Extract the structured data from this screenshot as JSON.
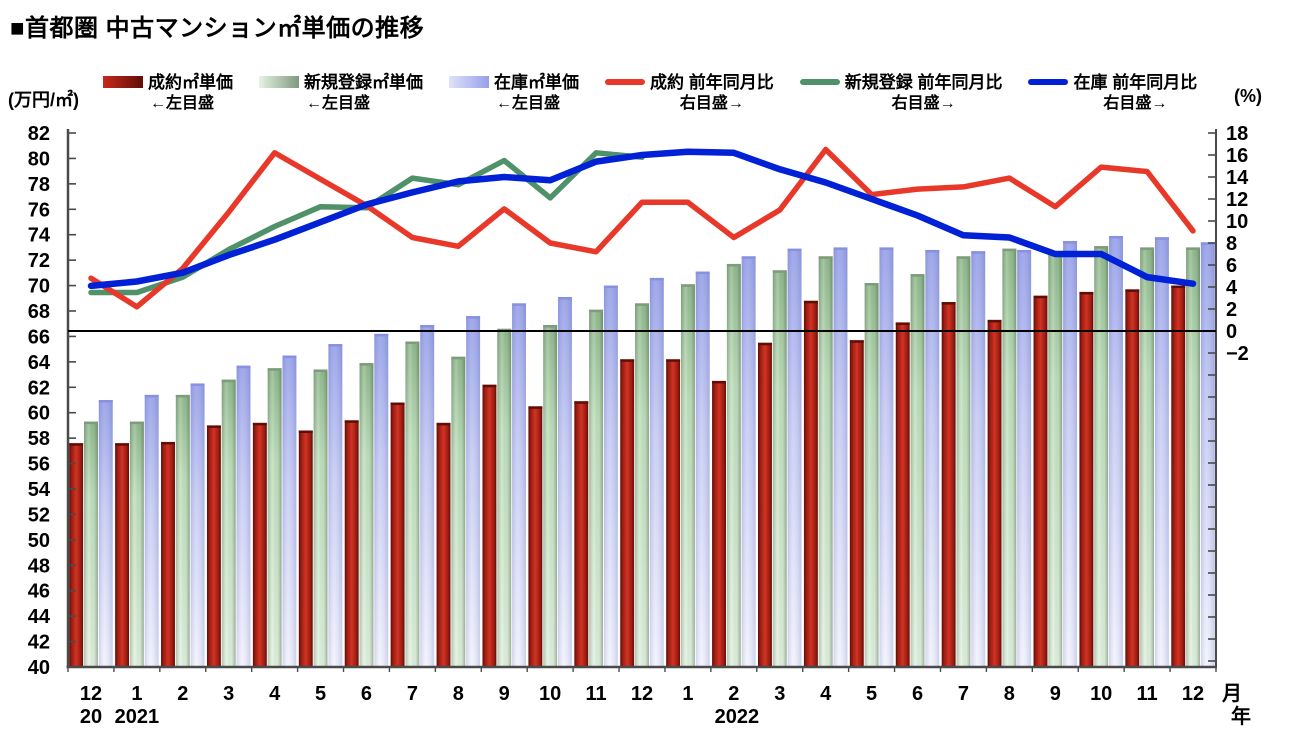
{
  "title": "■首都圏 中古マンション㎡単価の推移",
  "units": {
    "left": "(万円/㎡)",
    "right": "(%)"
  },
  "legend": {
    "items": [
      {
        "label": "成約㎡単価",
        "sub": "←左目盛",
        "kind": "bar",
        "key": "red-bar"
      },
      {
        "label": "新規登録㎡単価",
        "sub": "←左目盛",
        "kind": "bar",
        "key": "green-bar"
      },
      {
        "label": "在庫㎡単価",
        "sub": "←左目盛",
        "kind": "bar",
        "key": "purple-bar"
      },
      {
        "label": "成約 前年同月比",
        "sub": "右目盛→",
        "kind": "line",
        "color": "#e8382a"
      },
      {
        "label": "新規登録 前年同月比",
        "sub": "右目盛→",
        "kind": "line",
        "color": "#4f9168"
      },
      {
        "label": "在庫 前年同月比",
        "sub": "右目盛→",
        "kind": "line",
        "color": "#0021d6"
      }
    ]
  },
  "x_suffix": {
    "month": "月",
    "year": "年"
  },
  "chart_data": {
    "type": "bar+line",
    "categories": [
      "12",
      "1",
      "2",
      "3",
      "4",
      "5",
      "6",
      "7",
      "8",
      "9",
      "10",
      "11",
      "12",
      "1",
      "2",
      "3",
      "4",
      "5",
      "6",
      "7",
      "8",
      "9",
      "10",
      "11",
      "12"
    ],
    "year_marks": [
      {
        "index": 0,
        "label": "20"
      },
      {
        "index": 1,
        "label": "2021"
      },
      {
        "index": 13,
        "label": "2022"
      }
    ],
    "left_axis": {
      "label": "万円/㎡",
      "min": 40,
      "max": 82,
      "step": 2
    },
    "right_axis": {
      "label": "%",
      "min": -2,
      "max": 18,
      "step": 2,
      "negative_tick_color": "#e8382a"
    },
    "grid": false,
    "zero_line_right_value": 0,
    "legend_position": "top",
    "bar_series": [
      {
        "name": "成約㎡単価",
        "scale": "left",
        "values": [
          57.6,
          57.6,
          57.7,
          59.0,
          59.2,
          58.6,
          59.4,
          60.8,
          59.2,
          62.2,
          60.5,
          60.9,
          64.2,
          64.2,
          62.5,
          65.5,
          68.8,
          65.7,
          67.1,
          68.7,
          67.3,
          69.2,
          69.5,
          69.7,
          70.0
        ]
      },
      {
        "name": "新規登録㎡単価",
        "scale": "left",
        "values": [
          59.3,
          59.3,
          61.4,
          62.6,
          63.5,
          63.4,
          63.9,
          65.6,
          64.4,
          66.6,
          66.9,
          68.1,
          68.6,
          70.1,
          71.7,
          71.2,
          72.3,
          70.2,
          70.9,
          72.3,
          72.9,
          72.5,
          73.1,
          73.0,
          73.0
        ]
      },
      {
        "name": "在庫㎡単価",
        "scale": "left",
        "values": [
          61.0,
          61.4,
          62.3,
          63.7,
          64.5,
          65.4,
          66.2,
          66.9,
          67.6,
          68.6,
          69.1,
          70.0,
          70.6,
          71.1,
          72.3,
          72.9,
          73.0,
          73.0,
          72.8,
          72.7,
          72.8,
          73.5,
          73.9,
          73.8,
          73.4
        ]
      }
    ],
    "line_series": [
      {
        "name": "成約 前年同月比",
        "scale": "right",
        "color": "#e8382a",
        "width": 5.5,
        "values": [
          4.8,
          2.2,
          5.7,
          10.8,
          16.2,
          13.8,
          11.4,
          8.5,
          7.7,
          11.1,
          8.0,
          7.2,
          11.7,
          11.7,
          8.5,
          11.0,
          16.5,
          12.4,
          12.9,
          13.1,
          13.9,
          11.3,
          14.9,
          14.5,
          9.1
        ]
      },
      {
        "name": "新規登録 前年同月比",
        "scale": "right",
        "color": "#4f9168",
        "width": 5.5,
        "values": [
          3.5,
          3.5,
          4.9,
          7.4,
          9.5,
          11.3,
          11.2,
          13.9,
          13.3,
          15.5,
          12.1,
          16.2,
          15.8,
          null,
          null,
          null,
          null,
          null,
          null,
          null,
          null,
          null,
          null,
          null,
          null
        ]
      },
      {
        "name": "在庫 前年同月比",
        "scale": "right",
        "color": "#0021d6",
        "width": 6.5,
        "values": [
          4.1,
          4.5,
          5.3,
          6.9,
          8.3,
          9.9,
          11.5,
          12.6,
          13.6,
          14.0,
          13.7,
          15.4,
          16.0,
          16.3,
          16.2,
          14.7,
          13.5,
          12.0,
          10.5,
          8.7,
          8.5,
          7.0,
          7.0,
          4.9,
          4.3
        ]
      }
    ],
    "bar_colors": {
      "seiyaku": {
        "center": "#d13324",
        "edge": "#5f0d06",
        "cap": "#5e0e07"
      },
      "shinki": {
        "top": "#8fb98c",
        "mid": "#bedfbb",
        "bottom": "#e2f2e0",
        "cap": "#7f9b7c"
      },
      "zaiko": {
        "top": "#959fe8",
        "mid": "#c6cbf4",
        "bottom": "#f2f3fd",
        "cap": "#8791e0"
      }
    }
  }
}
